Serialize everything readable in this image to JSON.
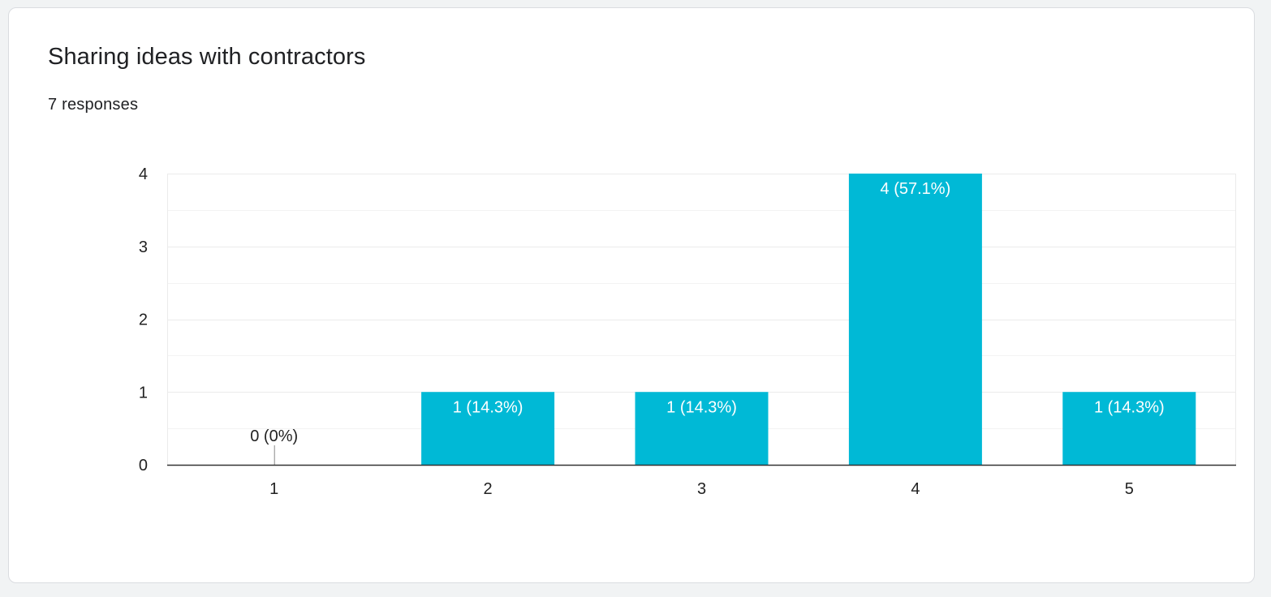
{
  "card": {
    "title": "Sharing ideas with contractors",
    "subtitle": "7 responses"
  },
  "colors": {
    "bar": "#00b9d6",
    "gridline": "#ebebeb",
    "axis": "#333333",
    "label_inside": "#ffffff",
    "label_outside": "#222222"
  },
  "chart_data": {
    "type": "bar",
    "title": "Sharing ideas with contractors",
    "categories": [
      "1",
      "2",
      "3",
      "4",
      "5"
    ],
    "values": [
      0,
      1,
      1,
      4,
      1
    ],
    "data_labels": [
      "0 (0%)",
      "1 (14.3%)",
      "1 (14.3%)",
      "4 (57.1%)",
      "1 (14.3%)"
    ],
    "y_ticks": [
      "0",
      "1",
      "2",
      "3",
      "4"
    ],
    "ylim": [
      0,
      4
    ],
    "xlabel": "",
    "ylabel": "",
    "grid": true,
    "legend": "none"
  }
}
